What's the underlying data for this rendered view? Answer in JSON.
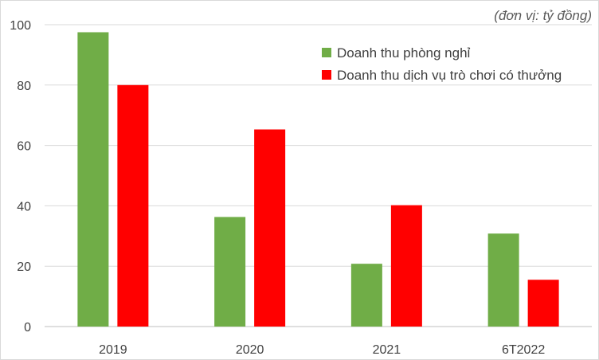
{
  "chart_data": {
    "type": "bar",
    "unit_note": "(đơn vị: tỷ đồng)",
    "categories": [
      "2019",
      "2020",
      "2021",
      "6T2022"
    ],
    "series": [
      {
        "name": "Doanh thu phòng nghỉ",
        "color": "#70ad47",
        "values": [
          97.5,
          36.3,
          20.8,
          30.8
        ]
      },
      {
        "name": "Doanh thu dịch vụ trò chơi có thưởng",
        "color": "#ff0000",
        "values": [
          80.0,
          65.3,
          40.2,
          15.5
        ]
      }
    ],
    "ylim": [
      0,
      100
    ],
    "yticks": [
      0,
      20,
      40,
      60,
      80,
      100
    ],
    "grid": true,
    "legend_position": "top-right"
  }
}
